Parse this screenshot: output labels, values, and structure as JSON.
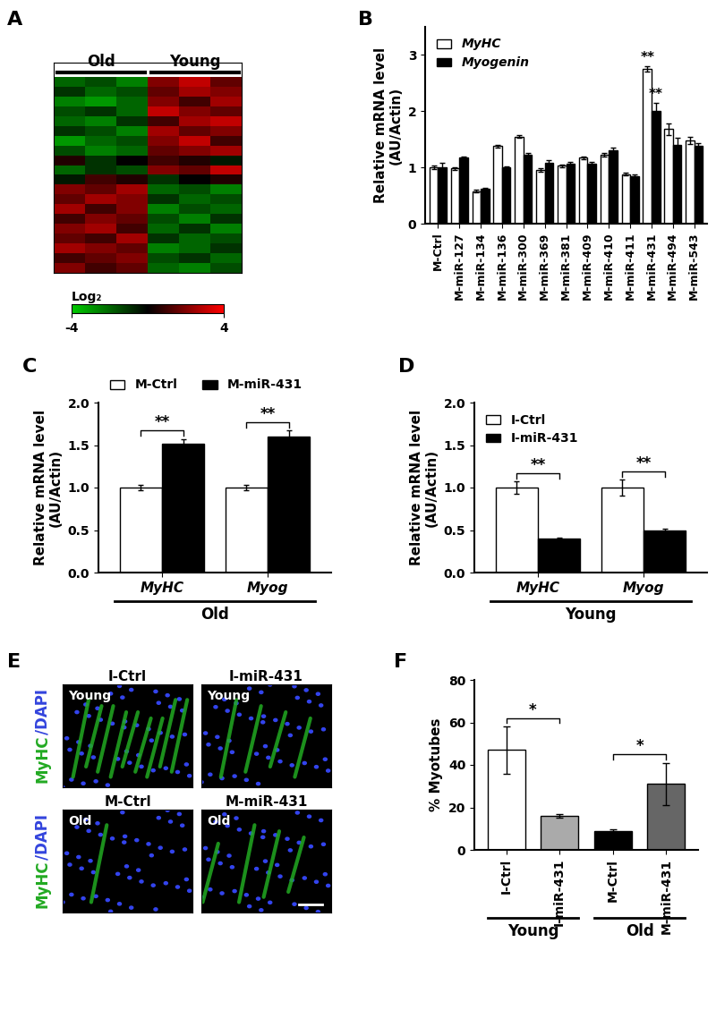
{
  "chart_data": [
    {
      "type": "heatmap",
      "panel": "A",
      "tick_labels": false,
      "column_groups": [
        {
          "label": "Old",
          "columns": [
            0,
            2
          ]
        },
        {
          "label": "Young",
          "columns": [
            3,
            5
          ]
        }
      ],
      "cells": [
        [
          -2,
          -1.5,
          -2.5,
          2,
          3,
          1.5
        ],
        [
          -1,
          -2,
          -1.5,
          1.5,
          2.5,
          2
        ],
        [
          -2.5,
          -3,
          -2,
          2,
          1,
          2.5
        ],
        [
          -1.5,
          -1,
          -2,
          3,
          2,
          1.5
        ],
        [
          -2,
          -2.5,
          -1,
          1,
          2.5,
          3
        ],
        [
          -1,
          -1.5,
          -2.5,
          2.5,
          1.5,
          2
        ],
        [
          -3,
          -2,
          -1.5,
          2,
          3,
          1
        ],
        [
          -1.5,
          -2.5,
          -2,
          1.5,
          2,
          2.5
        ],
        [
          0.5,
          -1,
          0,
          1,
          0.5,
          -0.5
        ],
        [
          -2,
          -1,
          -1.5,
          2,
          1.5,
          3
        ],
        [
          -0.5,
          1,
          0.5,
          -1,
          0,
          0.5
        ],
        [
          2,
          1.5,
          2.5,
          -2,
          -1.5,
          -2.5
        ],
        [
          1.5,
          2.5,
          2,
          -1,
          -2,
          -1.5
        ],
        [
          2.5,
          1,
          2,
          -2.5,
          -1.5,
          -2
        ],
        [
          1,
          2,
          1.5,
          -1.5,
          -2.5,
          -1
        ],
        [
          2,
          2.5,
          1,
          -2,
          -1,
          -2.5
        ],
        [
          1.5,
          1,
          2.5,
          -1,
          -2,
          -1.5
        ],
        [
          2.5,
          2,
          1.5,
          -2.5,
          -2,
          -1
        ],
        [
          1,
          1.5,
          2,
          -1.5,
          -1,
          -2
        ],
        [
          2,
          1,
          1.5,
          -2,
          -2.5,
          -1.5
        ]
      ],
      "colorbar_label": "Log₂",
      "colorbar_range": [
        -4,
        4
      ],
      "colorbar_ticks": [
        -4,
        4
      ]
    },
    {
      "type": "bar",
      "panel": "B",
      "y_label": "Relative mRNA level\n(AU/Actin)",
      "categories": [
        "M-Ctrl",
        "M-miR-127",
        "M-miR-134",
        "M-miR-136",
        "M-miR-300",
        "M-miR-369",
        "M-miR-381",
        "M-miR-409",
        "M-miR-410",
        "M-miR-411",
        "M-miR-431",
        "M-miR-494",
        "M-miR-543"
      ],
      "series": [
        {
          "name": "MyHC",
          "color": "#ffffff",
          "values": [
            1.0,
            0.98,
            0.58,
            1.38,
            1.55,
            0.95,
            1.03,
            1.17,
            1.22,
            0.88,
            2.75,
            1.68,
            1.48
          ],
          "errors": [
            0.03,
            0.02,
            0.02,
            0.02,
            0.02,
            0.03,
            0.02,
            0.03,
            0.03,
            0.02,
            0.05,
            0.1,
            0.07
          ]
        },
        {
          "name": "Myogenin",
          "color": "#000000",
          "values": [
            1.0,
            1.18,
            0.62,
            1.0,
            1.22,
            1.08,
            1.07,
            1.07,
            1.3,
            0.85,
            2.0,
            1.4,
            1.38
          ],
          "errors": [
            0.08,
            0.02,
            0.02,
            0.02,
            0.03,
            0.05,
            0.02,
            0.03,
            0.05,
            0.02,
            0.15,
            0.12,
            0.05
          ]
        }
      ],
      "annotations": [
        {
          "category": "M-miR-431",
          "series": 0,
          "label": "**"
        },
        {
          "category": "M-miR-431",
          "series": 1,
          "label": "**"
        }
      ],
      "ylim": [
        0,
        3.5
      ],
      "yticks": [
        0,
        1,
        2,
        3
      ],
      "legend": "upper left"
    },
    {
      "type": "bar",
      "panel": "C",
      "y_label": "Relative mRNA level\n(AU/Actin)",
      "group_label": "Old",
      "categories": [
        "MyHC",
        "Myog"
      ],
      "series": [
        {
          "name": "M-Ctrl",
          "color": "#ffffff",
          "values": [
            1.0,
            1.0
          ],
          "errors": [
            0.03,
            0.03
          ]
        },
        {
          "name": "M-miR-431",
          "color": "#000000",
          "values": [
            1.52,
            1.6
          ],
          "errors": [
            0.05,
            0.07
          ]
        }
      ],
      "significance": [
        {
          "category": 0,
          "label": "**"
        },
        {
          "category": 1,
          "label": "**"
        }
      ],
      "ylim": [
        0,
        2.0
      ],
      "yticks": [
        {
          "value": 0,
          "label": "0.0"
        },
        {
          "value": 0.5,
          "label": "0.5"
        },
        {
          "value": 1.0,
          "label": "1.0"
        },
        {
          "value": 1.5,
          "label": "1.5"
        },
        {
          "value": 2.0,
          "label": "2.0"
        }
      ],
      "legend": "upper left"
    },
    {
      "type": "bar",
      "panel": "D",
      "y_label": "Relative mRNA level\n(AU/Actin)",
      "group_label": "Young",
      "categories": [
        "MyHC",
        "Myog"
      ],
      "series": [
        {
          "name": "I-Ctrl",
          "color": "#ffffff",
          "values": [
            1.0,
            1.0
          ],
          "errors": [
            0.07,
            0.09
          ]
        },
        {
          "name": "I-miR-431",
          "color": "#000000",
          "values": [
            0.4,
            0.5
          ],
          "errors": [
            0.01,
            0.02
          ]
        }
      ],
      "significance": [
        {
          "category": 0,
          "label": "**"
        },
        {
          "category": 1,
          "label": "**"
        }
      ],
      "ylim": [
        0,
        2.0
      ],
      "yticks": [
        {
          "value": 0,
          "label": "0.0"
        },
        {
          "value": 0.5,
          "label": "0.5"
        },
        {
          "value": 1.0,
          "label": "1.0"
        },
        {
          "value": 1.5,
          "label": "1.5"
        },
        {
          "value": 2.0,
          "label": "2.0"
        }
      ],
      "legend": "upper left"
    },
    {
      "type": "image",
      "panel": "E",
      "images": [
        {
          "title": "I-Ctrl",
          "label": "Young"
        },
        {
          "title": "I-miR-431",
          "label": "Young"
        },
        {
          "title": "M-Ctrl",
          "label": "Old"
        },
        {
          "title": "M-miR-431",
          "label": "Old"
        }
      ],
      "stain_labels": [
        {
          "text": "MyHC",
          "color": "#22aa22"
        },
        {
          "text": "/DAPI",
          "color": "#3344dd"
        }
      ]
    },
    {
      "type": "bar",
      "panel": "F",
      "y_label": "% Myotubes",
      "categories": [
        "I-Ctrl",
        "I-miR-431",
        "M-Ctrl",
        "M-miR-431"
      ],
      "values": [
        47,
        16,
        9,
        31
      ],
      "errors": [
        11,
        1,
        0.5,
        10
      ],
      "colors": [
        "#ffffff",
        "#aaaaaa",
        "#000000",
        "#666666"
      ],
      "significance": [
        {
          "pair": [
            0,
            1
          ],
          "label": "*"
        },
        {
          "pair": [
            2,
            3
          ],
          "label": "*"
        }
      ],
      "groups": [
        {
          "label": "Young",
          "span": [
            0,
            1
          ]
        },
        {
          "label": "Old",
          "span": [
            2,
            3
          ]
        }
      ],
      "ylim": [
        0,
        80
      ],
      "yticks": [
        0,
        20,
        40,
        60,
        80
      ]
    }
  ]
}
